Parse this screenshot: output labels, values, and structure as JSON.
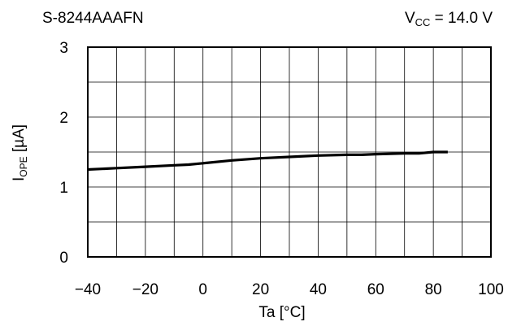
{
  "chart_data": {
    "type": "line",
    "title": "S-8244AAAFN",
    "annotation": {
      "lhs_main": "V",
      "lhs_sub": "CC",
      "rhs": " = 14.0 V"
    },
    "xlabel": "Ta [°C]",
    "ylabel": {
      "main": "I",
      "sub": "OPE",
      "unit": " [µA]"
    },
    "xlim": [
      -40,
      100
    ],
    "ylim": [
      0,
      3
    ],
    "xticks": [
      -40,
      -20,
      0,
      20,
      40,
      60,
      80,
      100
    ],
    "yticks": [
      0,
      1,
      2,
      3
    ],
    "x_tick_labels": [
      "−40",
      "−20",
      "0",
      "20",
      "40",
      "60",
      "80",
      "100"
    ],
    "y_tick_labels": [
      "0",
      "1",
      "2",
      "3"
    ],
    "grid": true,
    "series": [
      {
        "x": [
          -40,
          -30,
          -20,
          -10,
          -5,
          0,
          10,
          20,
          30,
          40,
          50,
          55,
          60,
          70,
          75,
          80,
          85
        ],
        "y": [
          1.25,
          1.27,
          1.29,
          1.31,
          1.32,
          1.34,
          1.38,
          1.41,
          1.43,
          1.45,
          1.46,
          1.46,
          1.47,
          1.48,
          1.48,
          1.5,
          1.5
        ]
      }
    ]
  }
}
